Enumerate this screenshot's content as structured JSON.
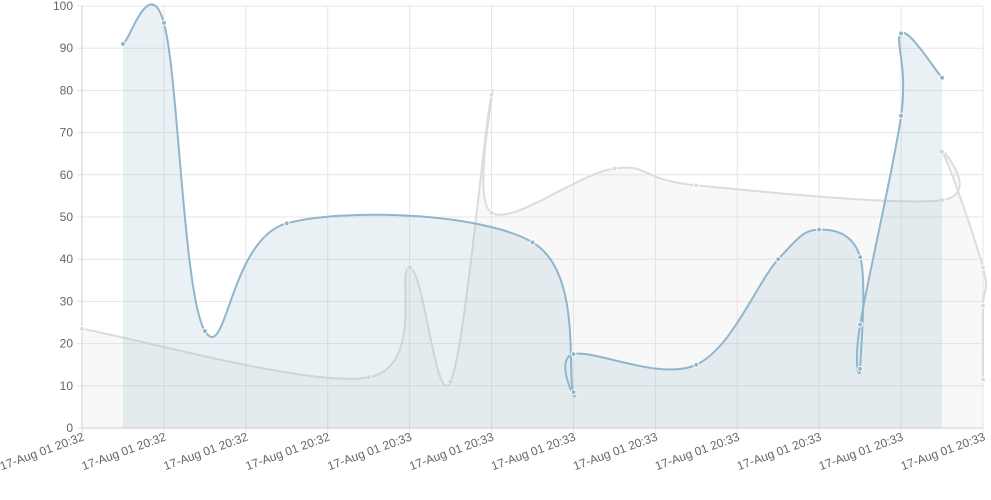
{
  "chart_data": {
    "type": "area",
    "xlim": [
      0,
      11
    ],
    "xticks": [
      {
        "value": 0,
        "label": "17-Aug 01 20:32"
      },
      {
        "value": 1,
        "label": "17-Aug 01 20:32"
      },
      {
        "value": 2,
        "label": "17-Aug 01 20:32"
      },
      {
        "value": 3,
        "label": "17-Aug 01 20:32"
      },
      {
        "value": 4,
        "label": "17-Aug 01 20:33"
      },
      {
        "value": 5,
        "label": "17-Aug 01 20:33"
      },
      {
        "value": 6,
        "label": "17-Aug 01 20:33"
      },
      {
        "value": 7,
        "label": "17-Aug 01 20:33"
      },
      {
        "value": 8,
        "label": "17-Aug 01 20:33"
      },
      {
        "value": 9,
        "label": "17-Aug 01 20:33"
      },
      {
        "value": 10,
        "label": "17-Aug 01 20:33"
      },
      {
        "value": 11,
        "label": "17-Aug 01 20:33"
      }
    ],
    "ylim": [
      0,
      100
    ],
    "yticks": [
      0,
      10,
      20,
      30,
      40,
      50,
      60,
      70,
      80,
      90,
      100
    ],
    "grid": true,
    "series": [
      {
        "color": "#dcdcdc",
        "fill": "rgba(220,220,220,0.2)",
        "x": [
          0,
          3.5,
          4,
          4.5,
          5,
          5,
          6.5,
          7.5,
          10.5,
          10.5,
          11,
          11,
          11
        ],
        "values": [
          23.5,
          12,
          38,
          11,
          79,
          51,
          61.5,
          57.5,
          54,
          65.5,
          38,
          29,
          11.5
        ]
      },
      {
        "color": "#8fb6cc",
        "fill": "rgba(151,187,205,0.2)",
        "x": [
          0.5,
          1,
          1.5,
          2.5,
          5.5,
          6,
          6,
          7.5,
          8.5,
          9,
          9.5,
          9.5,
          9.5,
          10,
          10,
          10.5
        ],
        "values": [
          91,
          96,
          23,
          48.5,
          44,
          8.5,
          17.5,
          15,
          40,
          47,
          40.5,
          14,
          24.5,
          74,
          93.5,
          83
        ]
      }
    ]
  }
}
